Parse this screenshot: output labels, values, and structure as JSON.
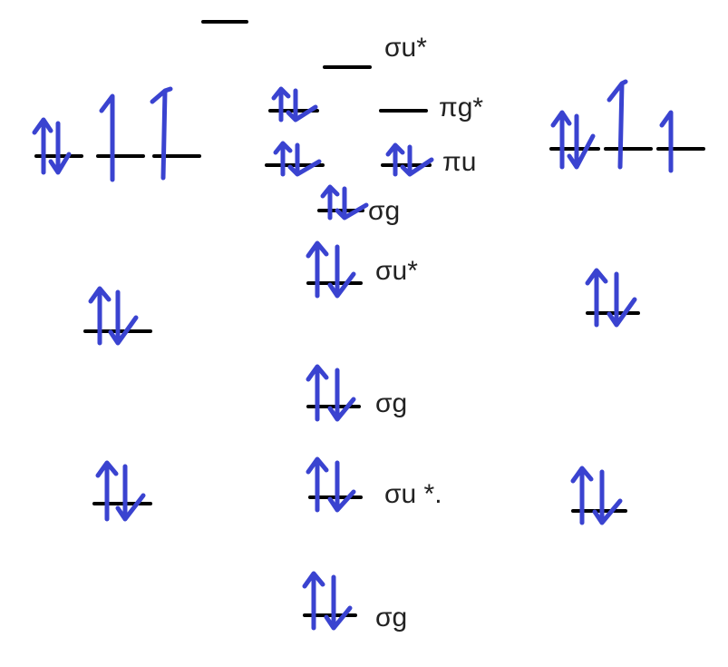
{
  "labels": {
    "sigma_u_star_top": "σu*",
    "pi_g_star": "πg*",
    "pi_u": "πu",
    "sigma_g_2p": "σg",
    "sigma_u_star_2s": "σu*",
    "sigma_g_2s": "σg",
    "sigma_u_star_1s": "σu *.",
    "sigma_g_1s": "σg"
  },
  "colors": {
    "electron_arrow": "#3a43d0",
    "energy_level": "#000000",
    "label_text": "#222222"
  }
}
